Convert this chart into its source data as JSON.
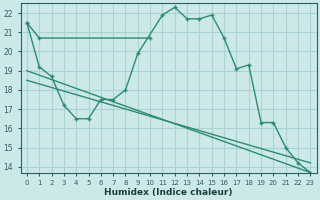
{
  "xlabel": "Humidex (Indice chaleur)",
  "line1_x": [
    0,
    1,
    10
  ],
  "line1_y": [
    21.5,
    20.7,
    20.7
  ],
  "line2_x": [
    0,
    1,
    2,
    3,
    4,
    5,
    6,
    7,
    8,
    9,
    11,
    12,
    13,
    14,
    15,
    16,
    17,
    18,
    19,
    20,
    21,
    22,
    23
  ],
  "line2_y": [
    21.5,
    19.2,
    18.7,
    17.2,
    16.5,
    16.5,
    17.5,
    17.5,
    18.0,
    19.9,
    21.9,
    22.3,
    21.7,
    21.7,
    21.9,
    20.7,
    19.1,
    19.3,
    16.3,
    16.3,
    15.0,
    14.2,
    13.7
  ],
  "line3_x": [
    0,
    23
  ],
  "line3_y": [
    19.0,
    13.7
  ],
  "line4_x": [
    0,
    23
  ],
  "line4_y": [
    18.5,
    14.2
  ],
  "ylim": [
    13.7,
    22.5
  ],
  "xlim": [
    -0.5,
    23.5
  ],
  "yticks": [
    14,
    15,
    16,
    17,
    18,
    19,
    20,
    21,
    22
  ],
  "xticks": [
    0,
    1,
    2,
    3,
    4,
    5,
    6,
    7,
    8,
    9,
    10,
    11,
    12,
    13,
    14,
    15,
    16,
    17,
    18,
    19,
    20,
    21,
    22,
    23
  ],
  "line_color": "#2d8b74",
  "bg_color": "#cce8e8",
  "grid_color": "#aad4d4",
  "fig_bg": "#cce8e8",
  "tick_color": "#2d6060",
  "label_color": "#1a4040",
  "lw": 1.0,
  "ms": 3.5
}
